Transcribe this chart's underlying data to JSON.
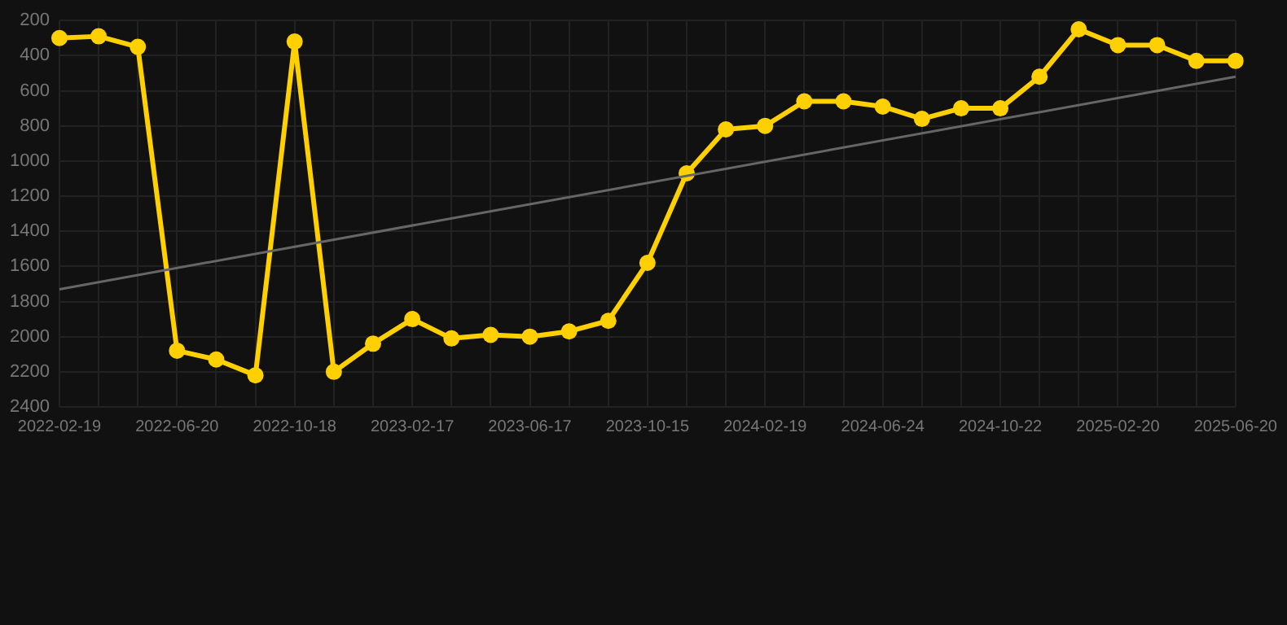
{
  "chart_data": {
    "type": "line",
    "categories": [
      "2022-02-19",
      null,
      null,
      "2022-06-20",
      null,
      null,
      "2022-10-18",
      null,
      null,
      "2023-02-17",
      null,
      null,
      "2023-06-17",
      null,
      null,
      "2023-10-15",
      null,
      null,
      "2024-02-19",
      null,
      null,
      "2024-06-24",
      null,
      null,
      "2024-10-22",
      null,
      null,
      "2025-02-20",
      null,
      null,
      "2025-06-20"
    ],
    "series": [
      {
        "color": "#666666",
        "marker": "none",
        "values": [
          1730,
          null,
          null,
          null,
          null,
          null,
          null,
          null,
          null,
          null,
          null,
          null,
          null,
          null,
          null,
          null,
          null,
          null,
          null,
          null,
          null,
          null,
          null,
          null,
          null,
          null,
          null,
          null,
          null,
          null,
          520
        ]
      },
      {
        "color": "#ffd000",
        "marker": "circle",
        "values": [
          300,
          290,
          350,
          2080,
          2130,
          2220,
          320,
          2200,
          2040,
          1900,
          2010,
          1990,
          2000,
          1970,
          1910,
          1580,
          1070,
          820,
          800,
          660,
          660,
          690,
          760,
          700,
          700,
          520,
          250,
          340,
          340,
          430,
          430
        ]
      }
    ],
    "ylim": [
      2400,
      200
    ],
    "yticks": [
      200,
      400,
      600,
      800,
      1000,
      1200,
      1400,
      1600,
      1800,
      2000,
      2200,
      2400
    ],
    "grid": true,
    "line_style": "solid"
  }
}
